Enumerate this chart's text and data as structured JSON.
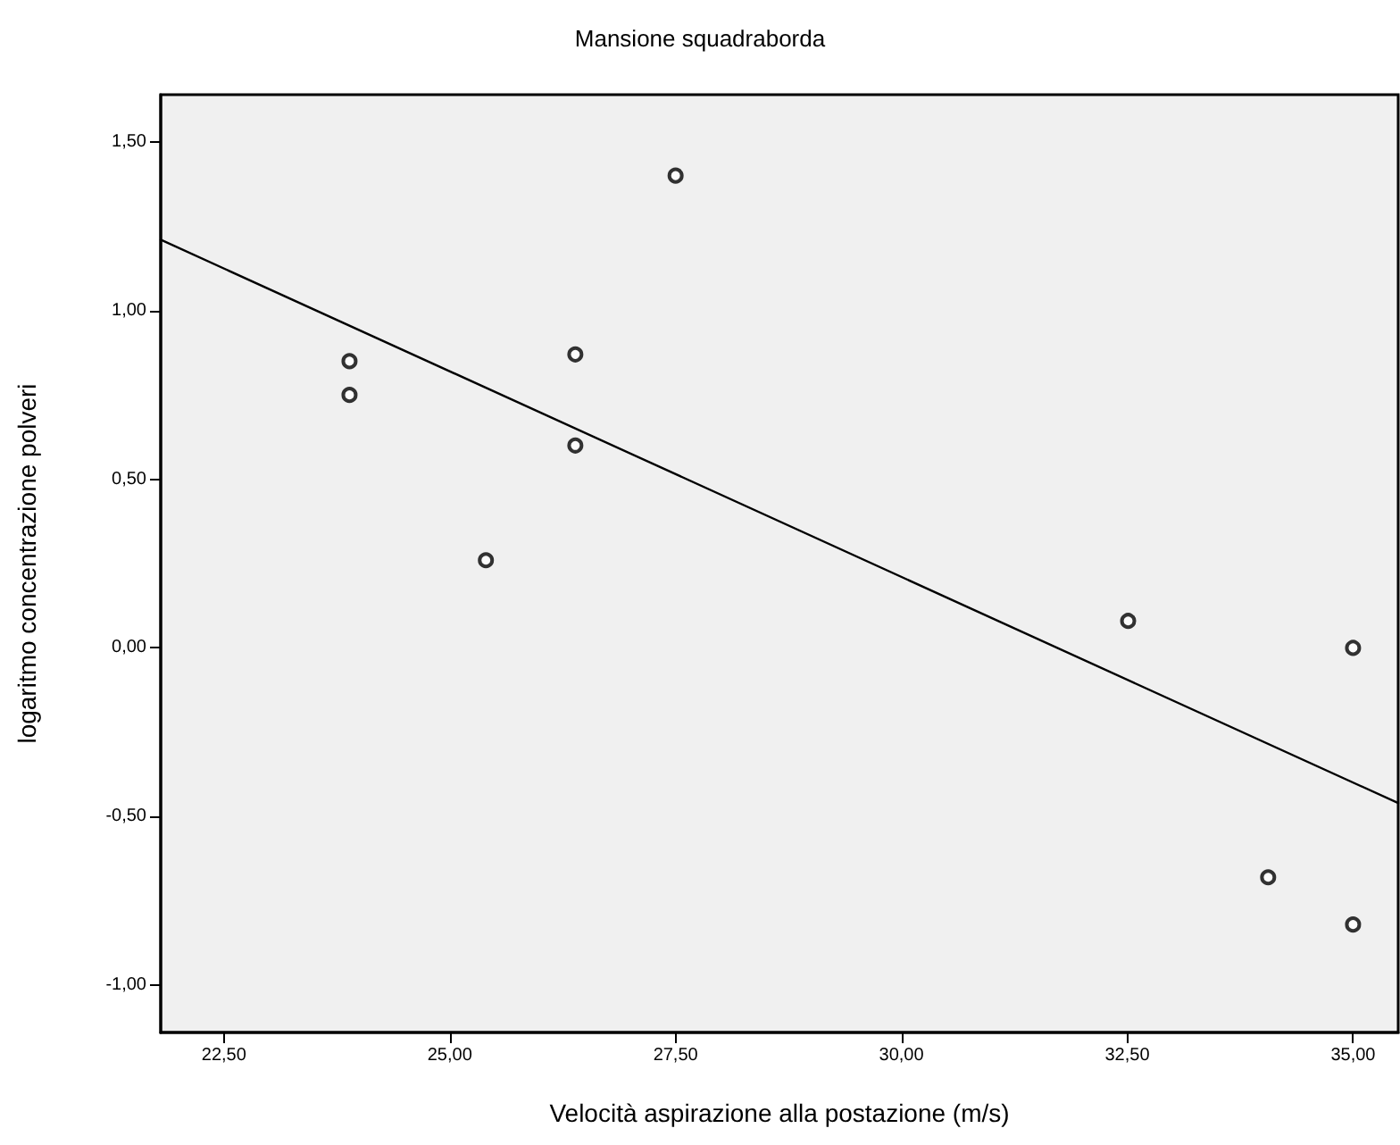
{
  "chart_data": {
    "type": "scatter",
    "title": "Mansione squadraborda",
    "xlabel": "Velocità aspirazione alla postazione (m/s)",
    "ylabel": "logaritmo concentrazione polveri",
    "xlim": [
      21.8,
      35.5
    ],
    "ylim": [
      -1.14,
      1.64
    ],
    "xticks": [
      {
        "value": 22.5,
        "label": "22,50"
      },
      {
        "value": 25,
        "label": "25,00"
      },
      {
        "value": 27.5,
        "label": "27,50"
      },
      {
        "value": 30,
        "label": "30,00"
      },
      {
        "value": 32.5,
        "label": "32,50"
      },
      {
        "value": 35,
        "label": "35,00"
      }
    ],
    "yticks": [
      {
        "value": -1,
        "label": "-1,00"
      },
      {
        "value": -0.5,
        "label": "-0,50"
      },
      {
        "value": 0,
        "label": "0,00"
      },
      {
        "value": 0.5,
        "label": "0,50"
      },
      {
        "value": 1,
        "label": "1,00"
      },
      {
        "value": 1.5,
        "label": "1,50"
      }
    ],
    "grid": false,
    "series": [
      {
        "marker": "circle",
        "color": "#000000",
        "x": [
          23.89,
          23.89,
          25.4,
          26.39,
          26.39,
          27.5,
          32.51,
          35,
          34.06,
          35
        ],
        "values": [
          0.85,
          0.75,
          0.26,
          0.87,
          0.6,
          1.4,
          0.08,
          0,
          -0.68,
          -0.82
        ]
      },
      {
        "type": "line",
        "marker": "none",
        "color": "#000000",
        "line_style": "solid",
        "x": [
          21.8,
          35.5
        ],
        "values": [
          1.21,
          -0.46
        ]
      }
    ]
  }
}
